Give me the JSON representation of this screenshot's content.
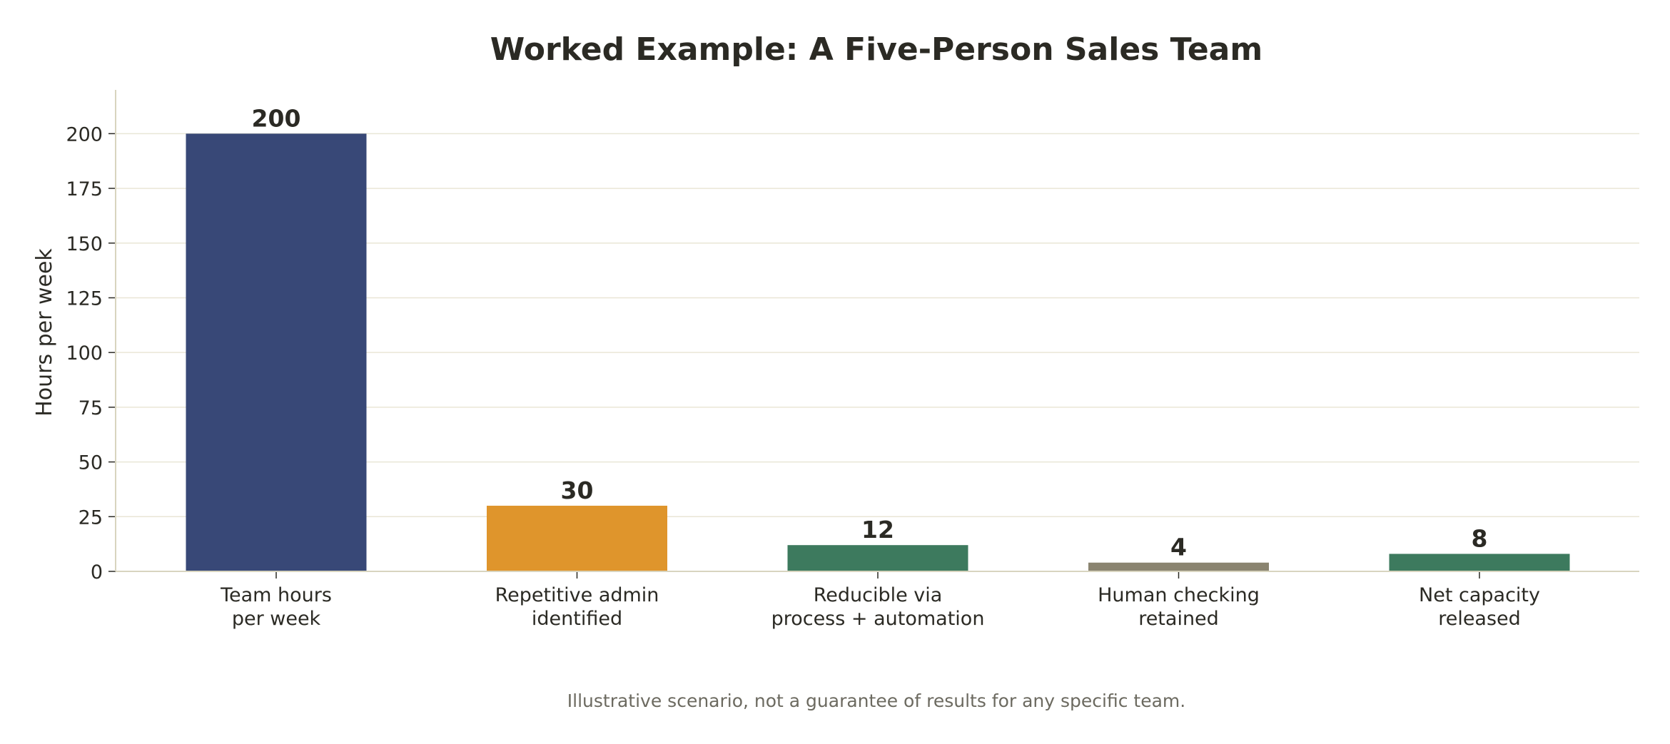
{
  "chart_data": {
    "type": "bar",
    "title": "Worked Example: A Five-Person Sales Team",
    "xlabel": "",
    "ylabel": "Hours per week",
    "ylim": [
      0,
      220
    ],
    "yticks": [
      0,
      25,
      50,
      75,
      100,
      125,
      150,
      175,
      200
    ],
    "grid": "horizontal",
    "categories": [
      [
        "Team hours",
        "per week"
      ],
      [
        "Repetitive admin",
        "identified"
      ],
      [
        "Reducible via",
        "process + automation"
      ],
      [
        "Human checking",
        "retained"
      ],
      [
        "Net capacity",
        "released"
      ]
    ],
    "values": [
      200,
      30,
      12,
      4,
      8
    ],
    "data_labels": [
      "200",
      "30",
      "12",
      "4",
      "8"
    ],
    "bar_colors": [
      "#384877",
      "#df952c",
      "#3d7a5e",
      "#8a8470",
      "#3d7a5e"
    ],
    "footnote": "Illustrative scenario, not a guarantee of results for any specific team."
  },
  "colors": {
    "axis": "#d8d4bf",
    "grid": "#e9e6d6",
    "text": "#2b2a24",
    "footnote": "#6c6a60"
  }
}
